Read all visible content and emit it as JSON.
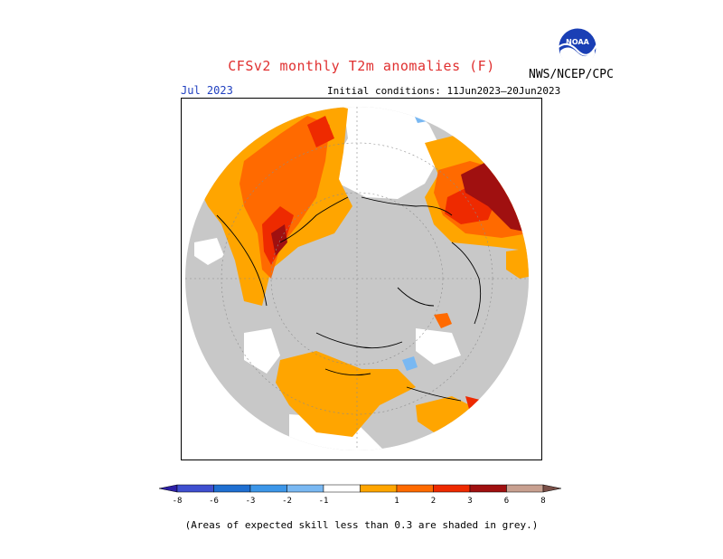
{
  "header": {
    "title": "CFSv2 monthly T2m anomalies (F)",
    "month": "Jul 2023",
    "initial_conditions": "Initial conditions: 11Jun2023–20Jun2023",
    "agency": "NWS/NCEP/CPC",
    "logo_text": "NOAA"
  },
  "colorbar": {
    "labels": [
      "-8",
      "-6",
      "-3",
      "-2",
      "-1",
      "1",
      "2",
      "3",
      "6",
      "8"
    ],
    "colors": [
      "#2c1fa6",
      "#3f4fcf",
      "#1f6fd1",
      "#3c96e8",
      "#79b8f2",
      "#ffffff",
      "#ffa500",
      "#ff6a00",
      "#ee2a00",
      "#a01010",
      "#c8a090",
      "#7a5048"
    ],
    "grey": "#c8c8c8"
  },
  "note": "(Areas of expected skill less than 0.3 are shaded in grey.)"
}
